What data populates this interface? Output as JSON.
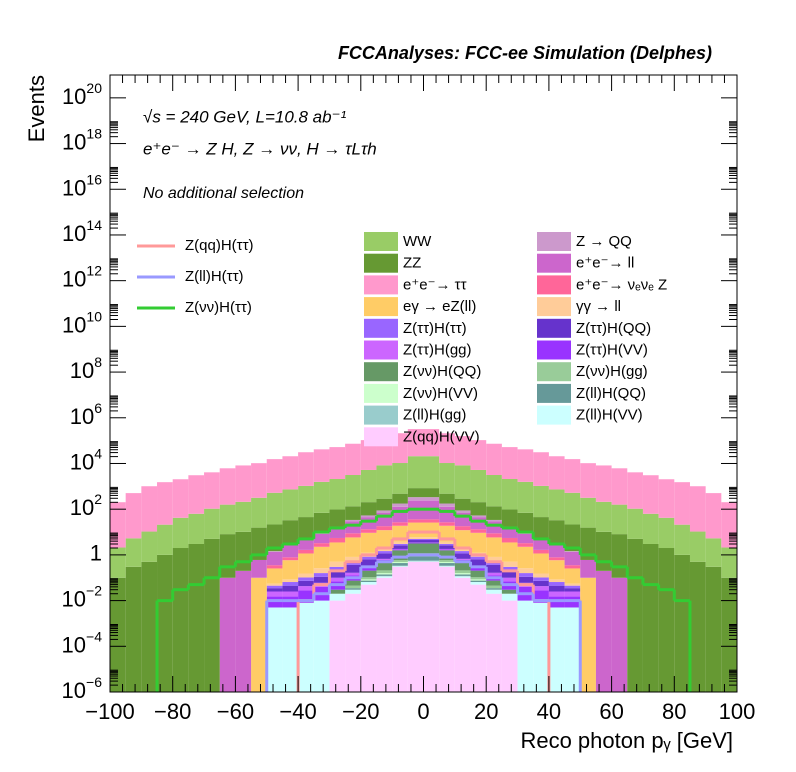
{
  "chart_data": {
    "type": "stacked-histogram",
    "title": "FCCAnalyses: FCC-ee Simulation (Delphes)",
    "annotations": [
      "√s = 240 GeV, L=10.8 ab⁻¹",
      "e⁺e⁻ → Z H, Z → νν, H → τLτh",
      "No additional selection"
    ],
    "x_label": "Reco photon pᵧ [GeV]",
    "y_label": "Events",
    "log_y": true,
    "xlim": [
      -100,
      100
    ],
    "ylim": [
      1e-06,
      1e+21
    ],
    "xticks": [
      {
        "value": -100,
        "label": "−100"
      },
      {
        "value": -80,
        "label": "−80"
      },
      {
        "value": -60,
        "label": "−60"
      },
      {
        "value": -40,
        "label": "−40"
      },
      {
        "value": -20,
        "label": "−20"
      },
      0,
      20,
      40,
      60,
      80,
      100
    ],
    "yticks": [
      {
        "value": 1e-06,
        "label": "10",
        "sup": "−6"
      },
      {
        "value": 0.0001,
        "label": "10",
        "sup": "−4"
      },
      {
        "value": 0.01,
        "label": "10",
        "sup": "−2"
      },
      1,
      {
        "value": 100.0,
        "label": "10",
        "sup": "2"
      },
      {
        "value": 10000.0,
        "label": "10",
        "sup": "4"
      },
      {
        "value": 1000000.0,
        "label": "10",
        "sup": "6"
      },
      {
        "value": 100000000.0,
        "label": "10",
        "sup": "8"
      },
      {
        "value": 10000000000.0,
        "label": "10",
        "sup": "10"
      },
      {
        "value": 1000000000000.0,
        "label": "10",
        "sup": "12"
      },
      {
        "value": 100000000000000.0,
        "label": "10",
        "sup": "14"
      },
      {
        "value": 1e+16,
        "label": "10",
        "sup": "16"
      },
      {
        "value": 1e+18,
        "label": "10",
        "sup": "18"
      },
      {
        "value": 1e+20,
        "label": "10",
        "sup": "20"
      }
    ],
    "bins": [
      -100,
      -95,
      -90,
      -85,
      -80,
      -75,
      -70,
      -65,
      -60,
      -55,
      -50,
      -45,
      -40,
      -35,
      -30,
      -25,
      -20,
      -15,
      -10,
      -5,
      0,
      5,
      10,
      15,
      20,
      25,
      30,
      35,
      40,
      45,
      50,
      55,
      60,
      65,
      70,
      75,
      80,
      85,
      90,
      95,
      100
    ],
    "series": [
      {
        "name": "Z(qq)H(VV)",
        "color": "#ffccff",
        "values": [
          0,
          0,
          0,
          0,
          0,
          0,
          0,
          0,
          0,
          0,
          0,
          0,
          0,
          0,
          0.01,
          0.02,
          0.05,
          0.1,
          0.3,
          0.5,
          0.5,
          0.3,
          0.1,
          0.05,
          0.02,
          0.01,
          0,
          0,
          0,
          0,
          0,
          0,
          0,
          0,
          0,
          0,
          0,
          0,
          0,
          0
        ]
      },
      {
        "name": "Z(ll)H(VV)",
        "color": "#ccffff",
        "values": [
          0,
          0,
          0,
          0,
          0,
          0,
          0,
          0,
          0,
          0,
          0.005,
          0.005,
          0.008,
          0.01,
          0.01,
          0.01,
          0.015,
          0.015,
          0.02,
          0.02,
          0.02,
          0.02,
          0.015,
          0.015,
          0.01,
          0.01,
          0.01,
          0.008,
          0.005,
          0.005,
          0,
          0,
          0,
          0,
          0,
          0,
          0,
          0,
          0,
          0
        ]
      },
      {
        "name": "Z(ll)H(gg)",
        "color": "#99cccc",
        "values": [
          0,
          0,
          0,
          0,
          0,
          0,
          0,
          0,
          0,
          0,
          0,
          0,
          0,
          0,
          0,
          0,
          0,
          0.005,
          0.02,
          0.05,
          0.05,
          0.02,
          0.005,
          0,
          0,
          0,
          0,
          0,
          0,
          0,
          0,
          0,
          0,
          0,
          0,
          0,
          0,
          0,
          0,
          0
        ]
      },
      {
        "name": "Z(ll)H(QQ)",
        "color": "#669999",
        "values": [
          0,
          0,
          0,
          0,
          0,
          0,
          0,
          0,
          0,
          0,
          0,
          0,
          0,
          0,
          0,
          0.005,
          0.01,
          0.02,
          0.1,
          0.3,
          0.3,
          0.1,
          0.02,
          0.01,
          0.005,
          0,
          0,
          0,
          0,
          0,
          0,
          0,
          0,
          0,
          0,
          0,
          0,
          0,
          0,
          0
        ]
      },
      {
        "name": "Z(νν)H(VV)",
        "color": "#ccffcc",
        "values": [
          0,
          0,
          0,
          0,
          0,
          0,
          0,
          0,
          0,
          0,
          0,
          0,
          0,
          0,
          0,
          0,
          0.01,
          0.02,
          0.05,
          0.1,
          0.1,
          0.05,
          0.02,
          0.01,
          0,
          0,
          0,
          0,
          0,
          0,
          0,
          0,
          0,
          0,
          0,
          0,
          0,
          0,
          0,
          0
        ]
      },
      {
        "name": "Z(νν)H(gg)",
        "color": "#99cc99",
        "values": [
          0,
          0,
          0,
          0,
          0,
          0,
          0,
          0,
          0,
          0,
          0,
          0,
          0,
          0,
          0,
          0.01,
          0.02,
          0.05,
          0.1,
          0.2,
          0.2,
          0.1,
          0.05,
          0.02,
          0.01,
          0,
          0,
          0,
          0,
          0,
          0,
          0,
          0,
          0,
          0,
          0,
          0,
          0,
          0,
          0
        ]
      },
      {
        "name": "Z(νν)H(QQ)",
        "color": "#669966",
        "values": [
          0,
          0,
          0,
          0,
          0,
          0,
          0,
          0,
          0,
          0,
          0,
          0,
          0,
          0,
          0.01,
          0.03,
          0.1,
          0.3,
          1,
          2,
          2,
          1,
          0.3,
          0.1,
          0.03,
          0.01,
          0,
          0,
          0,
          0,
          0,
          0,
          0,
          0,
          0,
          0,
          0,
          0,
          0,
          0
        ]
      },
      {
        "name": "Z(ττ)H(VV)",
        "color": "#9933ff",
        "values": [
          0,
          0,
          0,
          0,
          0,
          0,
          0,
          0,
          0,
          0,
          0.01,
          0.01,
          0.02,
          0.03,
          0.04,
          0.05,
          0.08,
          0.1,
          0.15,
          0.2,
          0.2,
          0.15,
          0.1,
          0.08,
          0.05,
          0.04,
          0.03,
          0.02,
          0.01,
          0.01,
          0,
          0,
          0,
          0,
          0,
          0,
          0,
          0,
          0,
          0
        ]
      },
      {
        "name": "Z(ττ)H(gg)",
        "color": "#cc66ff",
        "values": [
          0,
          0,
          0,
          0,
          0,
          0,
          0,
          0,
          0,
          0,
          0.01,
          0.01,
          0.015,
          0.02,
          0.03,
          0.04,
          0.05,
          0.06,
          0.08,
          0.1,
          0.1,
          0.08,
          0.06,
          0.05,
          0.04,
          0.03,
          0.02,
          0.015,
          0.01,
          0.01,
          0,
          0,
          0,
          0,
          0,
          0,
          0,
          0,
          0,
          0
        ]
      },
      {
        "name": "Z(ττ)H(QQ)",
        "color": "#6633cc",
        "values": [
          0,
          0,
          0,
          0,
          0,
          0,
          0,
          0,
          0,
          0,
          0.01,
          0.02,
          0.03,
          0.05,
          0.1,
          0.2,
          0.3,
          0.5,
          0.8,
          1,
          1,
          0.8,
          0.5,
          0.3,
          0.2,
          0.1,
          0.05,
          0.03,
          0.02,
          0.01,
          0,
          0,
          0,
          0,
          0,
          0,
          0,
          0,
          0,
          0
        ]
      },
      {
        "name": "Z(ττ)H(ττ)",
        "color": "#9966ff",
        "values": [
          0,
          0,
          0,
          0,
          0,
          0,
          0,
          0,
          0,
          0,
          0.01,
          0.02,
          0.03,
          0.05,
          0.1,
          0.15,
          0.2,
          0.3,
          0.4,
          0.5,
          0.5,
          0.4,
          0.3,
          0.2,
          0.15,
          0.1,
          0.05,
          0.03,
          0.02,
          0.01,
          0,
          0,
          0,
          0,
          0,
          0,
          0,
          0,
          0,
          0
        ]
      },
      {
        "name": "γγ → ll",
        "color": "#ffcc99",
        "values": [
          0,
          0,
          0,
          0,
          0,
          0,
          0,
          0,
          0,
          0,
          0.01,
          0.02,
          0.05,
          0.1,
          0.2,
          0.3,
          0.4,
          0.6,
          0.8,
          1,
          1,
          0.8,
          0.6,
          0.4,
          0.3,
          0.2,
          0.1,
          0.05,
          0.02,
          0.01,
          0,
          0,
          0,
          0,
          0,
          0,
          0,
          0,
          0,
          0
        ]
      },
      {
        "name": "eγ → eZ(ll)",
        "color": "#ffcc66",
        "values": [
          0,
          0,
          0,
          0,
          0,
          0,
          0,
          0,
          0,
          0.1,
          0.2,
          0.5,
          1,
          2,
          3,
          5,
          8,
          10,
          15,
          20,
          20,
          15,
          10,
          8,
          5,
          3,
          2,
          1,
          0.5,
          0.2,
          0.1,
          0,
          0,
          0,
          0,
          0,
          0,
          0,
          0,
          0
        ]
      },
      {
        "name": "e⁺e⁻→ νₑνₑ Z",
        "color": "#ff6699",
        "values": [
          0,
          0,
          0,
          0,
          0,
          0,
          0,
          0,
          0,
          0,
          0.1,
          0.2,
          0.5,
          1,
          2,
          3,
          4,
          6,
          8,
          10,
          10,
          8,
          6,
          4,
          3,
          2,
          1,
          0.5,
          0.2,
          0.1,
          0,
          0,
          0,
          0,
          0,
          0,
          0,
          0,
          0,
          0
        ]
      },
      {
        "name": "e⁺e⁻→ ll",
        "color": "#cc66cc",
        "values": [
          0,
          0,
          0,
          0,
          0,
          0,
          0,
          0.1,
          0.2,
          0.5,
          1,
          2,
          3,
          5,
          10,
          20,
          30,
          50,
          100,
          200,
          200,
          100,
          50,
          30,
          20,
          10,
          5,
          3,
          2,
          1,
          0.5,
          0.2,
          0.1,
          0,
          0,
          0,
          0,
          0,
          0,
          0
        ]
      },
      {
        "name": "Z → QQ",
        "color": "#cc99cc",
        "values": [
          0,
          0,
          0,
          0,
          0,
          0,
          0,
          0,
          0,
          0,
          0.1,
          0.2,
          0.5,
          1,
          2,
          5,
          10,
          20,
          50,
          100,
          100,
          50,
          20,
          10,
          5,
          2,
          1,
          0.5,
          0.2,
          0.1,
          0,
          0,
          0,
          0,
          0,
          0,
          0,
          0,
          0,
          0
        ]
      },
      {
        "name": "ZZ",
        "color": "#669933",
        "values": [
          0.1,
          0.3,
          0.5,
          1,
          2,
          3,
          5,
          8,
          10,
          15,
          20,
          30,
          40,
          60,
          80,
          100,
          150,
          200,
          300,
          500,
          500,
          300,
          200,
          150,
          100,
          80,
          60,
          40,
          30,
          20,
          15,
          10,
          8,
          5,
          3,
          2,
          1,
          0.5,
          0.3,
          0.1
        ]
      },
      {
        "name": "WW",
        "color": "#99cc66",
        "values": [
          2,
          5,
          10,
          20,
          40,
          60,
          100,
          150,
          200,
          300,
          500,
          700,
          1000,
          1500,
          2000,
          3000,
          5000,
          8000,
          10000,
          20000,
          20000,
          10000,
          8000,
          5000,
          3000,
          2000,
          1500,
          1000,
          700,
          500,
          300,
          200,
          150,
          100,
          60,
          40,
          20,
          10,
          5,
          2
        ]
      },
      {
        "name": "e⁺e⁻→ ττ",
        "color": "#ff99cc",
        "values": [
          200,
          500,
          1000,
          1500,
          2000,
          3000,
          4000,
          6000,
          8000,
          10000,
          15000,
          20000,
          30000,
          40000,
          50000,
          70000,
          100000,
          150000,
          200000,
          300000,
          300000,
          200000,
          150000,
          100000,
          70000,
          50000,
          40000,
          30000,
          20000,
          15000,
          10000,
          8000,
          6000,
          4000,
          3000,
          2000,
          1500,
          1000,
          500,
          200
        ]
      }
    ],
    "line_series": [
      {
        "name": "Z(qq)H(ττ)",
        "color": "#ff9999",
        "values": [
          0,
          0,
          0,
          0,
          0,
          0,
          0,
          0,
          0,
          0,
          0,
          0,
          0.01,
          0.05,
          0.2,
          0.5,
          1,
          2,
          5,
          10,
          10,
          5,
          2,
          1,
          0.5,
          0.2,
          0.05,
          0.01,
          0,
          0,
          0,
          0,
          0,
          0,
          0,
          0,
          0,
          0,
          0,
          0
        ]
      },
      {
        "name": "Z(ll)H(ττ)",
        "color": "#9999ff",
        "values": [
          0,
          0,
          0,
          0,
          0,
          0,
          0,
          0,
          0,
          0,
          0.01,
          0.01,
          0.01,
          0.02,
          0.05,
          0.1,
          0.3,
          0.5,
          0.8,
          1,
          1,
          0.8,
          0.5,
          0.3,
          0.1,
          0.05,
          0.02,
          0.01,
          0.01,
          0.01,
          0,
          0,
          0,
          0,
          0,
          0,
          0,
          0,
          0,
          0
        ]
      },
      {
        "name": "Z(νν)H(ττ)",
        "color": "#33cc33",
        "values": [
          0,
          0,
          0,
          0.01,
          0.03,
          0.05,
          0.1,
          0.3,
          0.5,
          1,
          2,
          3,
          5,
          10,
          15,
          20,
          30,
          50,
          80,
          100,
          100,
          80,
          50,
          30,
          20,
          15,
          10,
          5,
          3,
          2,
          1,
          0.5,
          0.3,
          0.1,
          0.05,
          0.03,
          0.01,
          0,
          0,
          0
        ]
      }
    ]
  }
}
